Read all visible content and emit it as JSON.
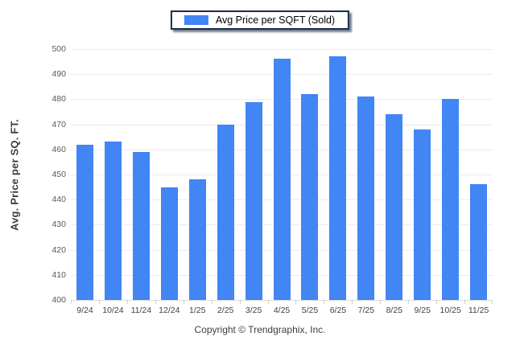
{
  "legend": {
    "label": "Avg Price per SQFT (Sold)"
  },
  "footer": {
    "copyright": "Copyright © Trendgraphix, Inc."
  },
  "colors": {
    "bar": "#4285f4",
    "legend_border": "#1c2b4a",
    "gridline": "#ececec"
  },
  "chart_data": {
    "type": "bar",
    "title": "",
    "xlabel": "",
    "ylabel": "Avg. Price per SQ. FT.",
    "ylim": [
      400,
      500
    ],
    "ytick_step": 10,
    "grid": true,
    "legend_position": "top-center",
    "categories": [
      "9/24",
      "10/24",
      "11/24",
      "12/24",
      "1/25",
      "2/25",
      "3/25",
      "4/25",
      "5/25",
      "6/25",
      "7/25",
      "8/25",
      "9/25",
      "10/25",
      "11/25"
    ],
    "series": [
      {
        "name": "Avg Price per SQFT (Sold)",
        "color": "#4285f4",
        "values": [
          462,
          463,
          459,
          445,
          448,
          470,
          479,
          496,
          482,
          497,
          481,
          474,
          468,
          480,
          446
        ]
      }
    ]
  }
}
